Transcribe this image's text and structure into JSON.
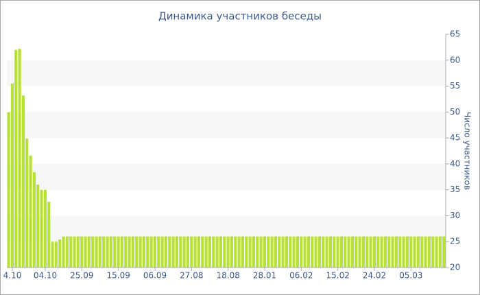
{
  "chart_data": {
    "type": "bar",
    "title": "Динамика участников беседы",
    "y_axis_label": "Число участников",
    "color": "#b8e03a",
    "grid": true,
    "ylim": [
      20,
      65
    ],
    "yticks": [
      20,
      25,
      30,
      35,
      40,
      45,
      50,
      55,
      60,
      65
    ],
    "categories": [
      null,
      "4.10",
      null,
      null,
      null,
      null,
      null,
      null,
      null,
      null,
      "04.10",
      null,
      null,
      null,
      null,
      null,
      null,
      null,
      null,
      null,
      "25.09",
      null,
      null,
      null,
      null,
      null,
      null,
      null,
      null,
      null,
      "15.09",
      null,
      null,
      null,
      null,
      null,
      null,
      null,
      null,
      null,
      "06.09",
      null,
      null,
      null,
      null,
      null,
      null,
      null,
      null,
      null,
      "27.08",
      null,
      null,
      null,
      null,
      null,
      null,
      null,
      null,
      null,
      "18.08",
      null,
      null,
      null,
      null,
      null,
      null,
      null,
      null,
      null,
      "28.01",
      null,
      null,
      null,
      null,
      null,
      null,
      null,
      null,
      null,
      "06.02",
      null,
      null,
      null,
      null,
      null,
      null,
      null,
      null,
      null,
      "15.02",
      null,
      null,
      null,
      null,
      null,
      null,
      null,
      null,
      null,
      "24.02",
      null,
      null,
      null,
      null,
      null,
      null,
      null,
      null,
      null,
      "05.03",
      null,
      null,
      null,
      null,
      null,
      null,
      null,
      null,
      null
    ],
    "values": [
      50,
      55.5,
      62,
      62.2,
      53.2,
      44.9,
      41.6,
      38.4,
      36,
      35,
      35,
      32.7,
      25,
      25,
      25.4,
      26,
      26,
      26,
      26,
      26,
      26,
      26,
      26,
      26,
      26,
      26,
      26,
      26,
      26,
      26,
      26,
      26,
      26,
      26,
      26,
      26,
      26,
      26,
      26,
      26,
      26,
      26,
      26,
      26,
      26,
      26,
      26,
      26,
      26,
      26,
      26,
      26,
      26,
      26,
      26,
      26,
      26,
      26,
      26,
      26,
      26,
      26,
      26,
      26,
      26,
      26,
      26,
      26,
      26,
      26,
      26,
      26,
      26,
      26,
      26,
      26,
      26,
      26,
      26,
      26,
      26,
      26,
      26,
      26,
      26,
      26,
      26,
      26,
      26,
      26,
      26,
      26,
      26,
      26,
      26,
      26,
      26,
      26,
      26,
      26,
      26,
      26,
      26,
      26,
      26,
      26,
      26,
      26,
      26,
      26,
      26,
      26,
      26,
      26,
      26,
      26,
      26,
      26,
      26,
      26
    ]
  }
}
